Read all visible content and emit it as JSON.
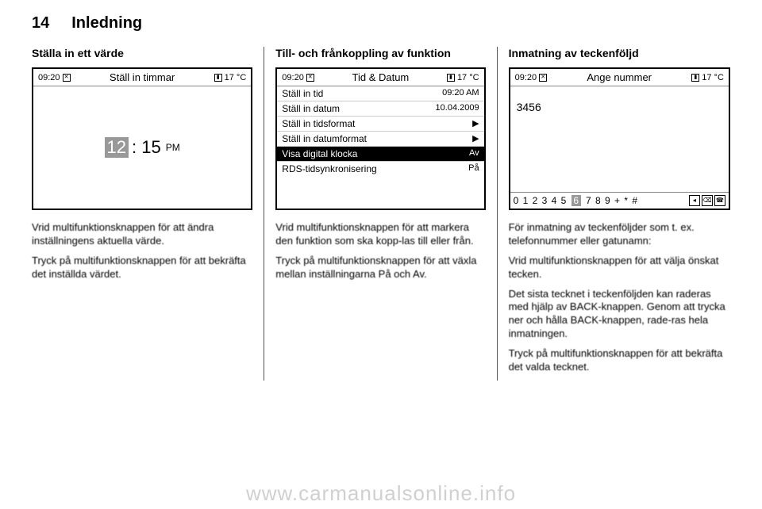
{
  "header": {
    "page_number": "14",
    "chapter": "Inledning"
  },
  "col1": {
    "title": "Ställa in ett värde",
    "screen": {
      "time": "09:20",
      "title": "Ställ in timmar",
      "temp": "17 °C",
      "hour_hl": "12",
      "sep": ": 15",
      "ampm": "PM"
    },
    "p1": "Vrid multifunktionsknappen för att ändra inställningens aktuella värde.",
    "p2": "Tryck på multifunktionsknappen för att bekräfta det inställda värdet."
  },
  "col2": {
    "title": "Till- och frånkoppling av funktion",
    "screen": {
      "time": "09:20",
      "title": "Tid & Datum",
      "temp": "17 °C",
      "rows": [
        {
          "label": "Ställ in tid",
          "value": "09:20 AM",
          "sel": false
        },
        {
          "label": "Ställ in datum",
          "value": "10.04.2009",
          "sel": false
        },
        {
          "label": "Ställ in tidsformat",
          "value": "▶",
          "sel": false
        },
        {
          "label": "Ställ in datumformat",
          "value": "▶",
          "sel": false
        },
        {
          "label": "Visa digital klocka",
          "value": "Av",
          "sel": true
        },
        {
          "label": "RDS-tidsynkronisering",
          "value": "På",
          "sel": false
        }
      ]
    },
    "p1": "Vrid multifunktionsknappen för att markera den funktion som ska kopp-las till eller från.",
    "p2": "Tryck på multifunktionsknappen för att växla mellan inställningarna På och Av."
  },
  "col3": {
    "title": "Inmatning av teckenföljd",
    "screen": {
      "time": "09:20",
      "title": "Ange nummer",
      "temp": "17 °C",
      "entered": "3456",
      "keys_before": "0 1 2 3 4 5",
      "key_hl": "6",
      "keys_after": "7 8 9 + * #",
      "icons": [
        "◂",
        "⌫",
        "☎"
      ]
    },
    "p1": "För inmatning av teckenföljder som t. ex. telefonnummer eller gatunamn:",
    "p2": "Vrid multifunktionsknappen för att välja önskat tecken.",
    "p3": "Det sista tecknet i teckenföljden kan raderas med hjälp av BACK-knappen. Genom att trycka ner och hålla BACK-knappen, rade-ras hela inmatningen.",
    "p4": "Tryck på multifunktionsknappen för att bekräfta det valda tecknet."
  },
  "footer": {
    "url": "www.carmanualsonline.info"
  },
  "colors": {
    "text": "#000000",
    "border": "#000000",
    "highlight_bg": "#999999",
    "selected_bg": "#000000",
    "selected_fg": "#ffffff",
    "watermark": "#d0d0d0"
  }
}
